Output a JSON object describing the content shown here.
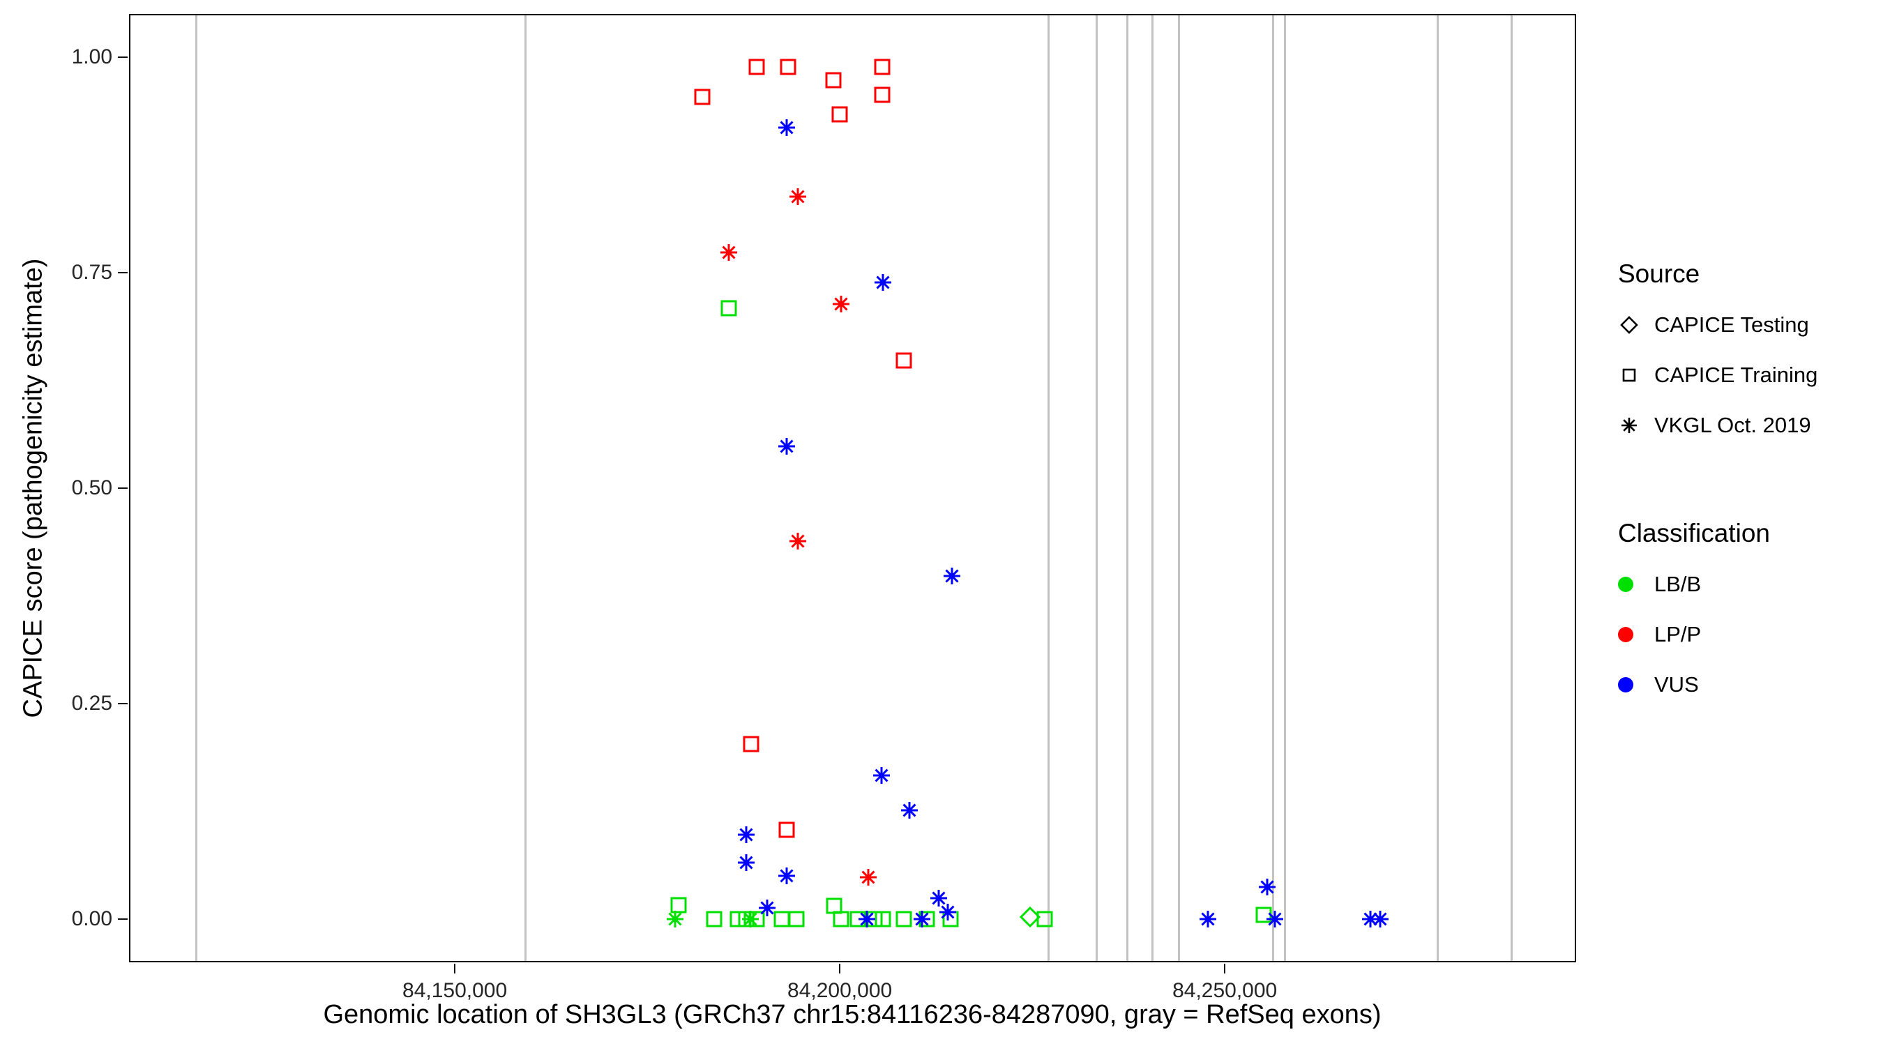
{
  "chart_data": {
    "type": "scatter",
    "xlabel": "Genomic location of SH3GL3 (GRCh37 chr15:84116236-84287090, gray = RefSeq exons)",
    "ylabel": "CAPICE score (pathogenicity estimate)",
    "xlim": [
      84107693,
      84295633
    ],
    "ylim": [
      -0.05,
      1.05
    ],
    "grid": "off",
    "x_ticks": [
      {
        "value": 84150000,
        "label": "84,150,000"
      },
      {
        "value": 84200000,
        "label": "84,200,000"
      },
      {
        "value": 84250000,
        "label": "84,250,000"
      }
    ],
    "y_ticks": [
      {
        "value": 0.0,
        "label": "0.00"
      },
      {
        "value": 0.25,
        "label": "0.25"
      },
      {
        "value": 0.5,
        "label": "0.50"
      },
      {
        "value": 0.75,
        "label": "0.75"
      },
      {
        "value": 1.0,
        "label": "1.00"
      }
    ],
    "exon_color": "#c3c3c3",
    "exon_positions": [
      84116236,
      84159000,
      84226900,
      84233200,
      84237200,
      84240400,
      84243900,
      84256100,
      84257600,
      84277500,
      84287090
    ],
    "classification_colors": {
      "LB/B": "#00e000",
      "LP/P": "#ff0000",
      "VUS": "#0000ff"
    },
    "source_shapes": {
      "CAPICE Testing": "diamond",
      "CAPICE Training": "square",
      "VKGL Oct. 2019": "asterisk"
    },
    "points": [
      {
        "x": 84182000,
        "y": 0.955,
        "source": "CAPICE Training",
        "classification": "LP/P"
      },
      {
        "x": 84189000,
        "y": 0.99,
        "source": "CAPICE Training",
        "classification": "LP/P"
      },
      {
        "x": 84193100,
        "y": 0.99,
        "source": "CAPICE Training",
        "classification": "LP/P"
      },
      {
        "x": 84199000,
        "y": 0.975,
        "source": "CAPICE Training",
        "classification": "LP/P"
      },
      {
        "x": 84199800,
        "y": 0.935,
        "source": "CAPICE Training",
        "classification": "LP/P"
      },
      {
        "x": 84205300,
        "y": 0.99,
        "source": "CAPICE Training",
        "classification": "LP/P"
      },
      {
        "x": 84205300,
        "y": 0.958,
        "source": "CAPICE Training",
        "classification": "LP/P"
      },
      {
        "x": 84208100,
        "y": 0.65,
        "source": "CAPICE Training",
        "classification": "LP/P"
      },
      {
        "x": 84188300,
        "y": 0.205,
        "source": "CAPICE Training",
        "classification": "LP/P"
      },
      {
        "x": 84192900,
        "y": 0.105,
        "source": "CAPICE Training",
        "classification": "LP/P"
      },
      {
        "x": 84185400,
        "y": 0.71,
        "source": "CAPICE Training",
        "classification": "LB/B"
      },
      {
        "x": 84178900,
        "y": 0.018,
        "source": "CAPICE Training",
        "classification": "LB/B"
      },
      {
        "x": 84183500,
        "y": 0.002,
        "source": "CAPICE Training",
        "classification": "LB/B"
      },
      {
        "x": 84186600,
        "y": 0.002,
        "source": "CAPICE Training",
        "classification": "LB/B"
      },
      {
        "x": 84187700,
        "y": 0.002,
        "source": "CAPICE Training",
        "classification": "LB/B"
      },
      {
        "x": 84189000,
        "y": 0.002,
        "source": "CAPICE Training",
        "classification": "LB/B"
      },
      {
        "x": 84192300,
        "y": 0.002,
        "source": "CAPICE Training",
        "classification": "LB/B"
      },
      {
        "x": 84194200,
        "y": 0.002,
        "source": "CAPICE Training",
        "classification": "LB/B"
      },
      {
        "x": 84199100,
        "y": 0.017,
        "source": "CAPICE Training",
        "classification": "LB/B"
      },
      {
        "x": 84200000,
        "y": 0.002,
        "source": "CAPICE Training",
        "classification": "LB/B"
      },
      {
        "x": 84202200,
        "y": 0.002,
        "source": "CAPICE Training",
        "classification": "LB/B"
      },
      {
        "x": 84204300,
        "y": 0.002,
        "source": "CAPICE Training",
        "classification": "LB/B"
      },
      {
        "x": 84205400,
        "y": 0.002,
        "source": "CAPICE Training",
        "classification": "LB/B"
      },
      {
        "x": 84208100,
        "y": 0.002,
        "source": "CAPICE Training",
        "classification": "LB/B"
      },
      {
        "x": 84211100,
        "y": 0.002,
        "source": "CAPICE Training",
        "classification": "LB/B"
      },
      {
        "x": 84214200,
        "y": 0.002,
        "source": "CAPICE Training",
        "classification": "LB/B"
      },
      {
        "x": 84226400,
        "y": 0.002,
        "source": "CAPICE Training",
        "classification": "LB/B"
      },
      {
        "x": 84254900,
        "y": 0.007,
        "source": "CAPICE Training",
        "classification": "LB/B"
      },
      {
        "x": 84178400,
        "y": 0.002,
        "source": "VKGL Oct. 2019",
        "classification": "LB/B"
      },
      {
        "x": 84188200,
        "y": 0.002,
        "source": "VKGL Oct. 2019",
        "classification": "LB/B"
      },
      {
        "x": 84224500,
        "y": 0.004,
        "source": "CAPICE Testing",
        "classification": "LB/B"
      },
      {
        "x": 84185400,
        "y": 0.775,
        "source": "VKGL Oct. 2019",
        "classification": "LP/P"
      },
      {
        "x": 84194400,
        "y": 0.84,
        "source": "VKGL Oct. 2019",
        "classification": "LP/P"
      },
      {
        "x": 84200000,
        "y": 0.715,
        "source": "VKGL Oct. 2019",
        "classification": "LP/P"
      },
      {
        "x": 84194400,
        "y": 0.44,
        "source": "VKGL Oct. 2019",
        "classification": "LP/P"
      },
      {
        "x": 84203500,
        "y": 0.05,
        "source": "VKGL Oct. 2019",
        "classification": "LP/P"
      },
      {
        "x": 84192900,
        "y": 0.92,
        "source": "VKGL Oct. 2019",
        "classification": "VUS"
      },
      {
        "x": 84205400,
        "y": 0.74,
        "source": "VKGL Oct. 2019",
        "classification": "VUS"
      },
      {
        "x": 84192900,
        "y": 0.55,
        "source": "VKGL Oct. 2019",
        "classification": "VUS"
      },
      {
        "x": 84214400,
        "y": 0.4,
        "source": "VKGL Oct. 2019",
        "classification": "VUS"
      },
      {
        "x": 84205200,
        "y": 0.168,
        "source": "VKGL Oct. 2019",
        "classification": "VUS"
      },
      {
        "x": 84208900,
        "y": 0.128,
        "source": "VKGL Oct. 2019",
        "classification": "VUS"
      },
      {
        "x": 84187700,
        "y": 0.1,
        "source": "VKGL Oct. 2019",
        "classification": "VUS"
      },
      {
        "x": 84187700,
        "y": 0.067,
        "source": "VKGL Oct. 2019",
        "classification": "VUS"
      },
      {
        "x": 84192900,
        "y": 0.052,
        "source": "VKGL Oct. 2019",
        "classification": "VUS"
      },
      {
        "x": 84190400,
        "y": 0.015,
        "source": "VKGL Oct. 2019",
        "classification": "VUS"
      },
      {
        "x": 84212700,
        "y": 0.026,
        "source": "VKGL Oct. 2019",
        "classification": "VUS"
      },
      {
        "x": 84213800,
        "y": 0.01,
        "source": "VKGL Oct. 2019",
        "classification": "VUS"
      },
      {
        "x": 84203300,
        "y": 0.002,
        "source": "VKGL Oct. 2019",
        "classification": "VUS"
      },
      {
        "x": 84210500,
        "y": 0.002,
        "source": "VKGL Oct. 2019",
        "classification": "VUS"
      },
      {
        "x": 84247600,
        "y": 0.002,
        "source": "VKGL Oct. 2019",
        "classification": "VUS"
      },
      {
        "x": 84255300,
        "y": 0.039,
        "source": "VKGL Oct. 2019",
        "classification": "VUS"
      },
      {
        "x": 84256300,
        "y": 0.002,
        "source": "VKGL Oct. 2019",
        "classification": "VUS"
      },
      {
        "x": 84268700,
        "y": 0.002,
        "source": "VKGL Oct. 2019",
        "classification": "VUS"
      },
      {
        "x": 84270000,
        "y": 0.002,
        "source": "VKGL Oct. 2019",
        "classification": "VUS"
      }
    ]
  },
  "legend": {
    "source_title": "Source",
    "source_items": [
      {
        "label": "CAPICE Testing",
        "shape": "diamond"
      },
      {
        "label": "CAPICE Training",
        "shape": "square"
      },
      {
        "label": "VKGL Oct. 2019",
        "shape": "asterisk"
      }
    ],
    "classification_title": "Classification",
    "classification_items": [
      {
        "label": "LB/B",
        "color": "#00e000"
      },
      {
        "label": "LP/P",
        "color": "#ff0000"
      },
      {
        "label": "VUS",
        "color": "#0000ff"
      }
    ]
  }
}
